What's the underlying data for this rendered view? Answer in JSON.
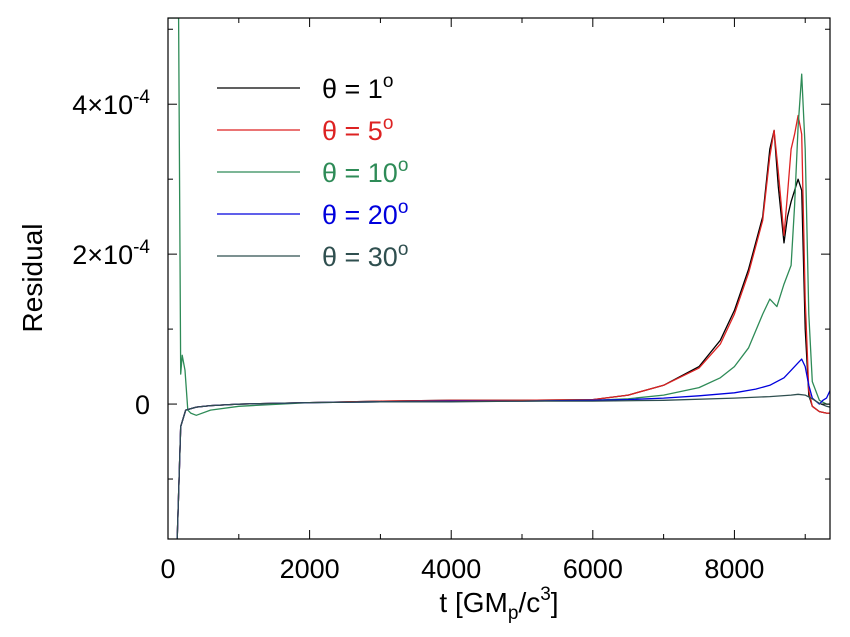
{
  "chart_data": {
    "type": "line",
    "title": "",
    "xlabel": {
      "base": "t [GM",
      "sub": "p",
      "mid": "/c",
      "sup": "3",
      "end": "]"
    },
    "ylabel": "Residual",
    "xlim": [
      0,
      9350
    ],
    "ylim": [
      -0.00018,
      0.000515
    ],
    "x_ticks": [
      {
        "value": 0,
        "label": "0"
      },
      {
        "value": 2000,
        "label": "2000"
      },
      {
        "value": 4000,
        "label": "4000"
      },
      {
        "value": 6000,
        "label": "6000"
      },
      {
        "value": 8000,
        "label": "8000"
      }
    ],
    "y_ticks": [
      {
        "value": 0,
        "base": "0",
        "exp": ""
      },
      {
        "value": 0.0002,
        "base": "2×10",
        "exp": "-4"
      },
      {
        "value": 0.0004,
        "base": "4×10",
        "exp": "-4"
      }
    ],
    "legend_position": "top-left",
    "series": [
      {
        "name": "θ = 1",
        "sup": "o",
        "color": "#000000",
        "x": [
          130,
          180,
          250,
          400,
          600,
          1000,
          2000,
          3000,
          4000,
          5000,
          6000,
          6500,
          7000,
          7500,
          7800,
          8000,
          8200,
          8400,
          8500,
          8560,
          8620,
          8700,
          8750,
          8800,
          8850,
          8900,
          8950,
          9000,
          9050,
          9100,
          9200,
          9300,
          9350
        ],
        "y": [
          -0.00018,
          -3e-05,
          -8e-06,
          -4e-06,
          -2e-06,
          0,
          2e-06,
          4e-06,
          5e-06,
          5e-06,
          6e-06,
          1.2e-05,
          2.5e-05,
          5e-05,
          8.5e-05,
          0.000125,
          0.00018,
          0.00025,
          0.00034,
          0.000365,
          0.00029,
          0.000215,
          0.00025,
          0.00027,
          0.000285,
          0.0003,
          0.000285,
          0.0001,
          1.2e-05,
          -3e-06,
          -1e-05,
          -1.2e-05,
          -1.2e-05
        ]
      },
      {
        "name": "θ = 5",
        "sup": "o",
        "color": "#dd2222",
        "x": [
          130,
          180,
          250,
          400,
          600,
          1000,
          2000,
          3000,
          4000,
          5000,
          6000,
          6500,
          7000,
          7500,
          7800,
          8000,
          8200,
          8400,
          8500,
          8560,
          8620,
          8700,
          8750,
          8800,
          8850,
          8900,
          8950,
          9000,
          9050,
          9100,
          9200,
          9300,
          9350
        ],
        "y": [
          -0.00018,
          -3e-05,
          -8e-06,
          -4e-06,
          -2e-06,
          0,
          2e-06,
          4e-06,
          5e-06,
          5e-06,
          6e-06,
          1.2e-05,
          2.5e-05,
          4.8e-05,
          8e-05,
          0.00012,
          0.000175,
          0.000245,
          0.00033,
          0.000365,
          0.00031,
          0.000225,
          0.00028,
          0.00034,
          0.00036,
          0.000385,
          0.00036,
          0.00014,
          1.8e-05,
          -3e-06,
          -1e-05,
          -1.2e-05,
          -1.2e-05
        ]
      },
      {
        "name": "θ = 10",
        "sup": "o",
        "color": "#2e8b57",
        "x": [
          0,
          100,
          150,
          180,
          200,
          240,
          280,
          320,
          400,
          600,
          1000,
          2000,
          3000,
          4000,
          5000,
          6000,
          6500,
          7000,
          7500,
          7800,
          8000,
          8200,
          8400,
          8500,
          8600,
          8700,
          8800,
          8850,
          8900,
          8950,
          9000,
          9050,
          9100,
          9200,
          9300,
          9350
        ],
        "y": [
          0.000515,
          0.000515,
          0.000515,
          4e-05,
          6.5e-05,
          4.5e-05,
          -8e-06,
          -1.2e-05,
          -1.5e-05,
          -8e-06,
          -3e-06,
          2e-06,
          3e-06,
          4e-06,
          4e-06,
          5e-06,
          7e-06,
          1.2e-05,
          2.2e-05,
          3.5e-05,
          5e-05,
          7.5e-05,
          0.00012,
          0.00014,
          0.00013,
          0.00016,
          0.000185,
          0.000265,
          0.00037,
          0.00044,
          0.00034,
          0.00012,
          3e-05,
          5e-06,
          0,
          0
        ]
      },
      {
        "name": "θ = 20",
        "sup": "o",
        "color": "#0000dd",
        "x": [
          130,
          180,
          250,
          400,
          600,
          1000,
          2000,
          3000,
          4000,
          5000,
          6000,
          6500,
          7000,
          7500,
          8000,
          8300,
          8500,
          8700,
          8800,
          8900,
          8950,
          9000,
          9050,
          9100,
          9200,
          9250,
          9300,
          9350
        ],
        "y": [
          -0.00018,
          -3e-05,
          -8e-06,
          -4e-06,
          -2e-06,
          0,
          2e-06,
          3e-06,
          4e-06,
          4e-06,
          5e-06,
          6e-06,
          8e-06,
          1.1e-05,
          1.5e-05,
          2e-05,
          2.5e-05,
          3.5e-05,
          4.5e-05,
          5.5e-05,
          6e-05,
          5e-05,
          2.5e-05,
          8e-06,
          0,
          5e-06,
          8e-06,
          1.8e-05
        ]
      },
      {
        "name": "θ = 30",
        "sup": "o",
        "color": "#2f4f4f",
        "x": [
          130,
          180,
          250,
          400,
          600,
          1000,
          2000,
          3000,
          4000,
          5000,
          6000,
          7000,
          8000,
          8500,
          8800,
          8900,
          9000,
          9100,
          9200,
          9300,
          9350
        ],
        "y": [
          -0.00018,
          -3e-05,
          -8e-06,
          -4e-06,
          -2e-06,
          0,
          2e-06,
          3e-06,
          3e-06,
          4e-06,
          4e-06,
          5e-06,
          8e-06,
          1e-05,
          1.2e-05,
          1.3e-05,
          1.2e-05,
          7e-06,
          1e-06,
          -3e-06,
          -4e-06
        ]
      }
    ]
  }
}
